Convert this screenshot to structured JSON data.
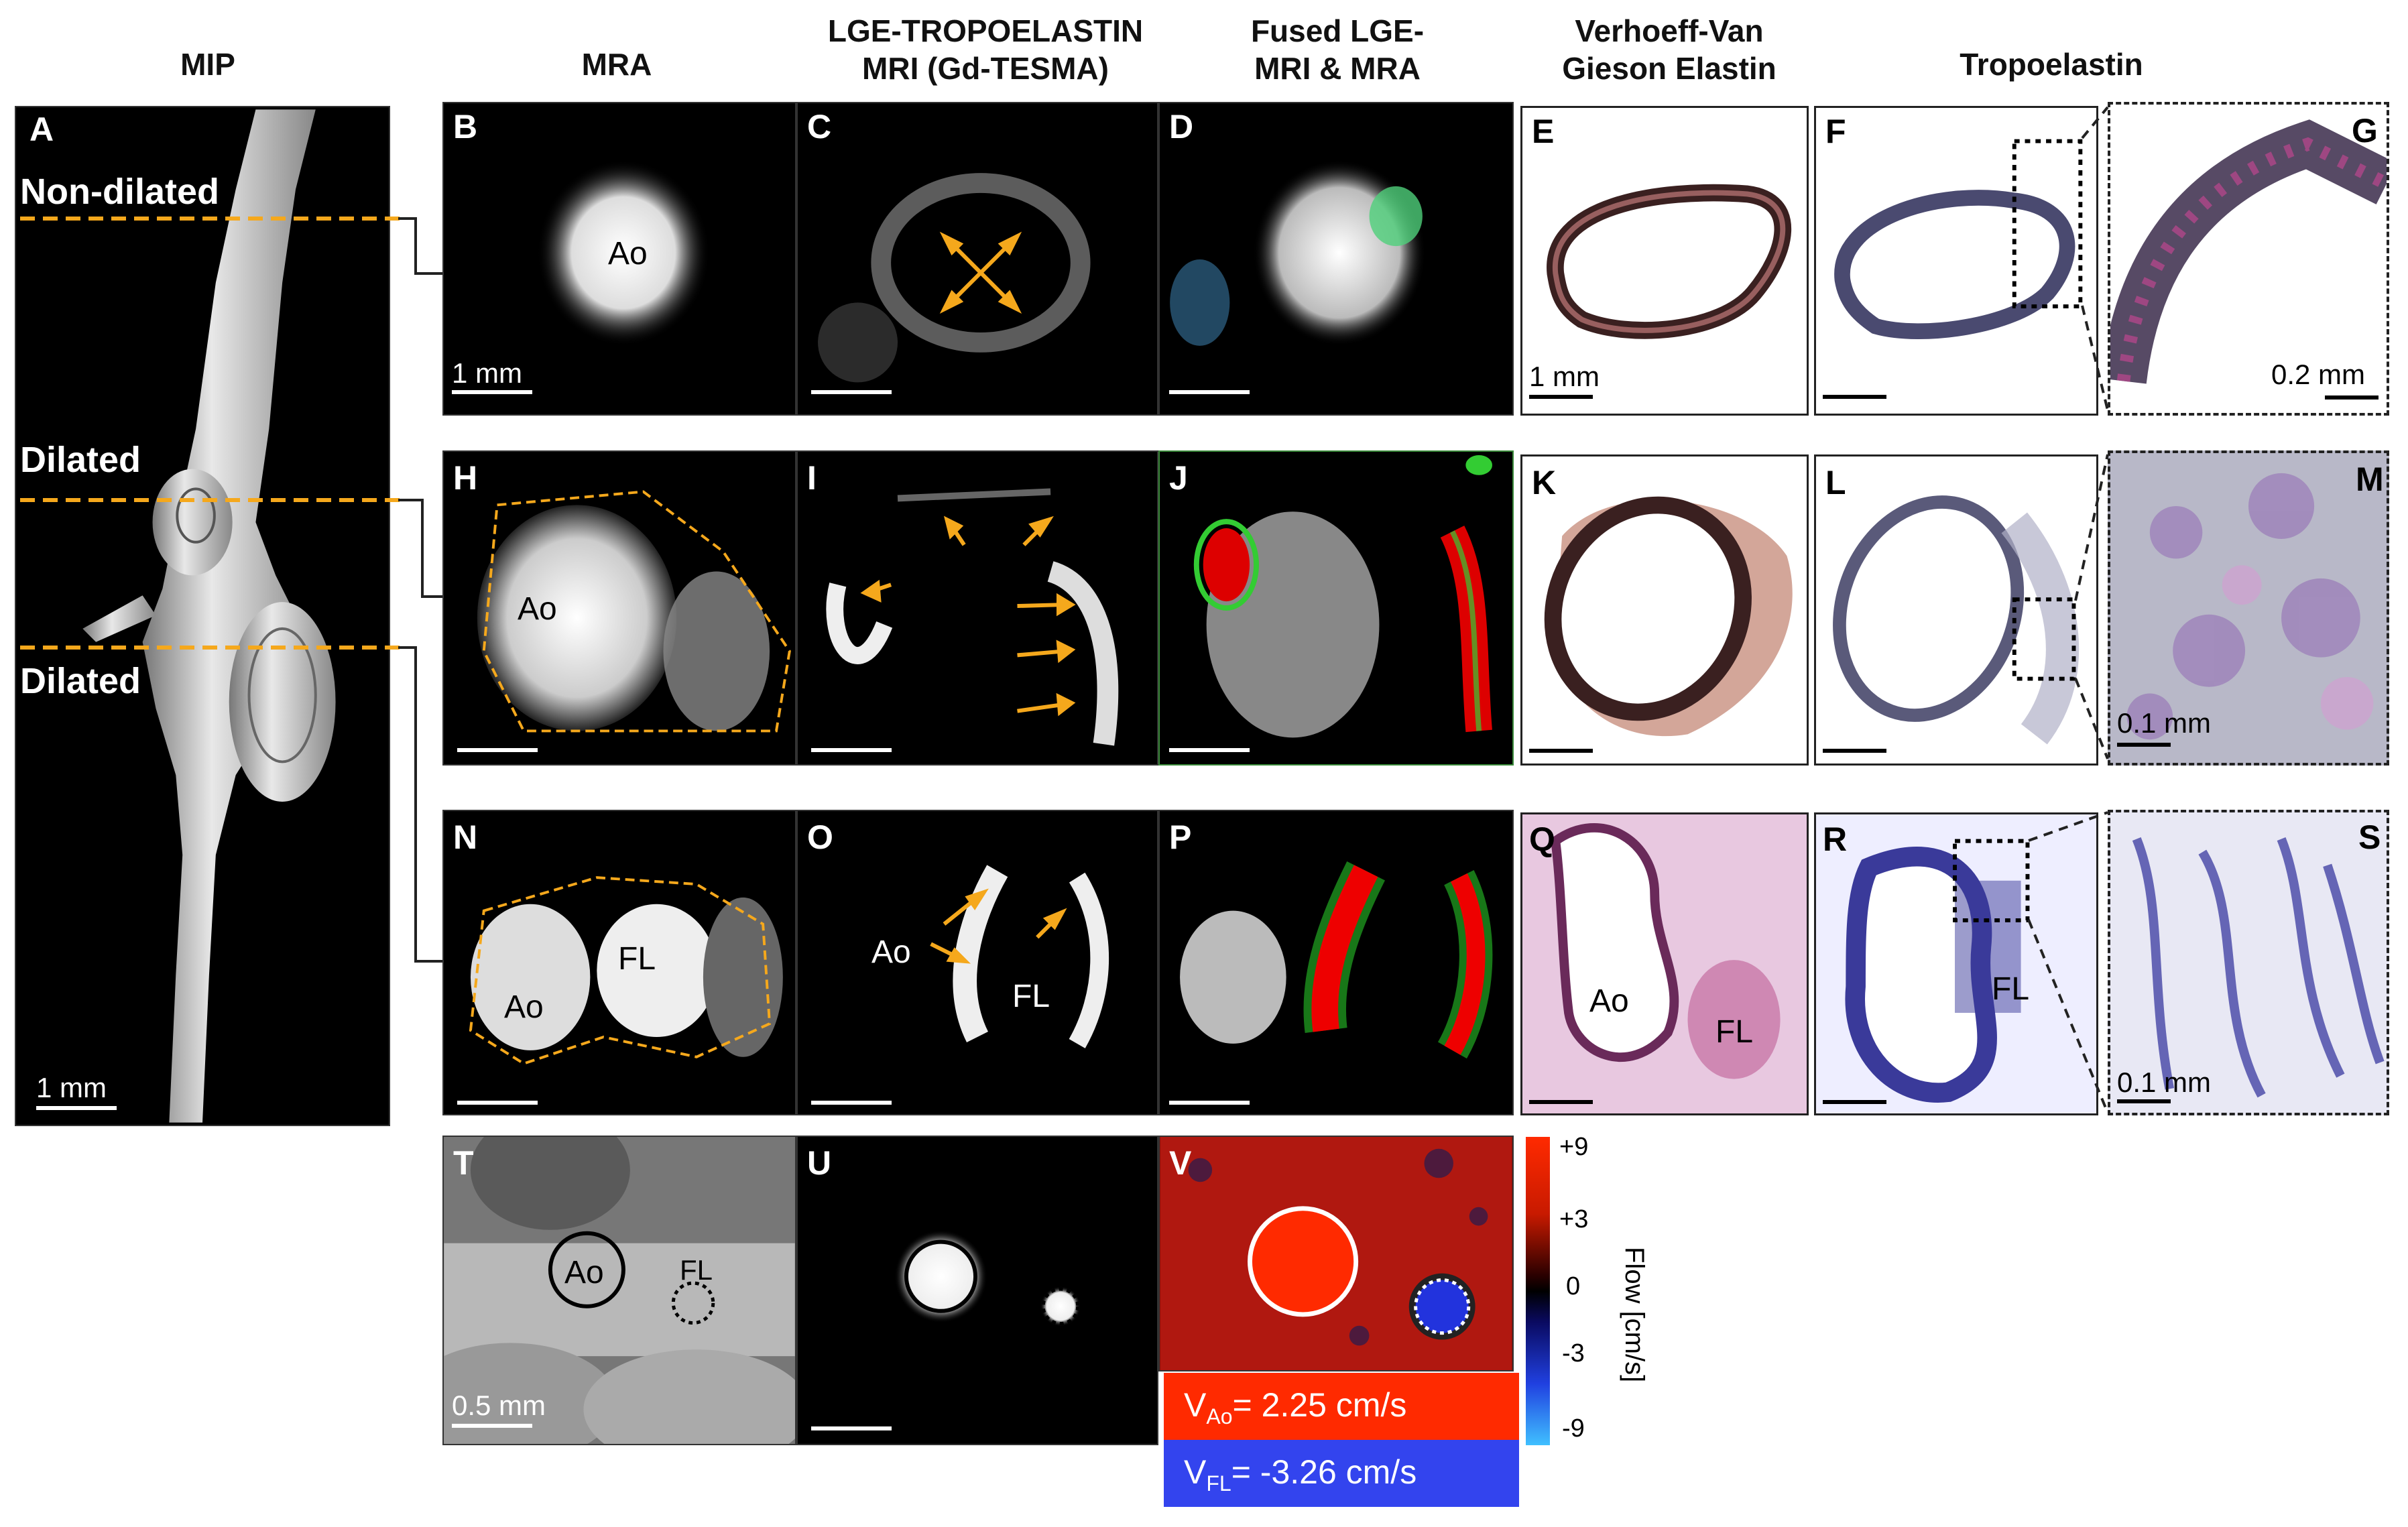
{
  "headers": {
    "mip": "MIP",
    "mra": "MRA",
    "lge": [
      "LGE-TROPOELASTIN",
      "MRI (Gd-TESMA)"
    ],
    "fused": [
      "Fused LGE-",
      "MRI & MRA"
    ],
    "vvg": [
      "Verhoeff-Van",
      "Gieson Elastin"
    ],
    "tropo": "Tropoelastin"
  },
  "panel_letters": [
    "A",
    "B",
    "C",
    "D",
    "E",
    "F",
    "G",
    "H",
    "I",
    "J",
    "K",
    "L",
    "M",
    "N",
    "O",
    "P",
    "Q",
    "R",
    "S",
    "T",
    "U",
    "V"
  ],
  "mip_levels": [
    "Non-dilated",
    "Dilated",
    "Dilated"
  ],
  "labels": {
    "ao": "Ao",
    "fl": "FL"
  },
  "scale_bars": {
    "one_mm": "1 mm",
    "point_two": "0.2 mm",
    "point_one": "0.1 mm",
    "point_five": "0.5 mm"
  },
  "velocity": {
    "ao": "V",
    "ao_sub": "Ao",
    "ao_val": "= 2.25 cm/s",
    "fl": "V",
    "fl_sub": "FL",
    "fl_val": "= -3.26 cm/s"
  },
  "colorbar": {
    "title": "Flow [cm/s]",
    "ticks": [
      "+9",
      "+3",
      "0",
      "-3",
      "-9"
    ]
  },
  "colors": {
    "arrow": "#f5a81c",
    "dash_line": "#f5a81c",
    "ao_box": "#ff2a00",
    "fl_box": "#3344ee"
  }
}
